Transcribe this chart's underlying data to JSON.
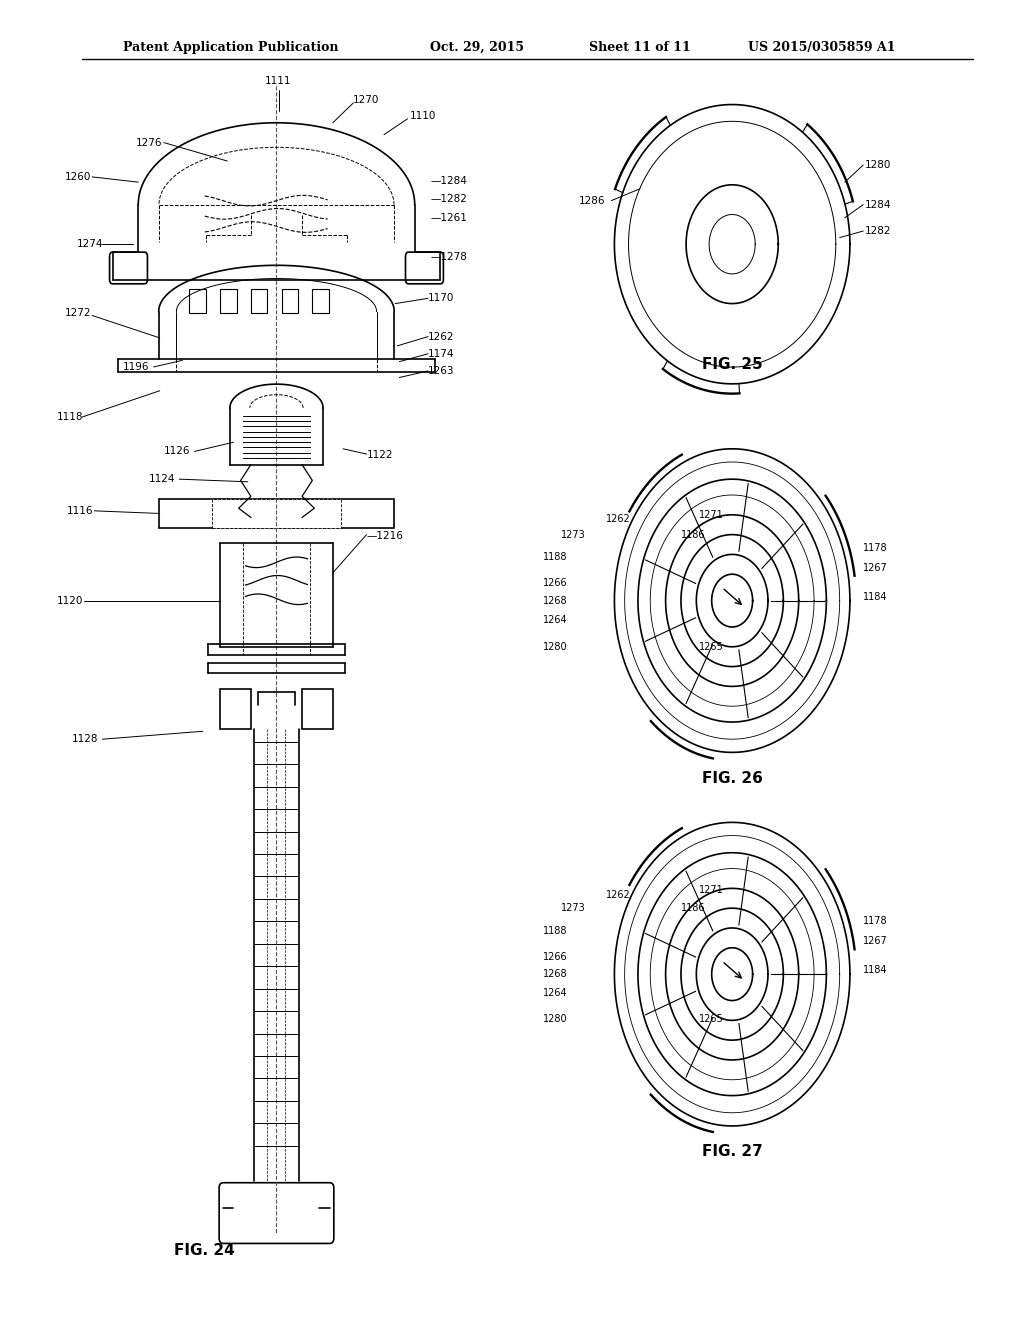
{
  "bg_color": "#ffffff",
  "line_color": "#000000",
  "header_text": "Patent Application Publication",
  "header_date": "Oct. 29, 2015",
  "header_sheet": "Sheet 11 of 11",
  "header_patent": "US 2015/0305859 A1",
  "fig24_label": "FIG. 24",
  "fig25_label": "FIG. 25",
  "fig26_label": "FIG. 26",
  "fig27_label": "FIG. 27"
}
